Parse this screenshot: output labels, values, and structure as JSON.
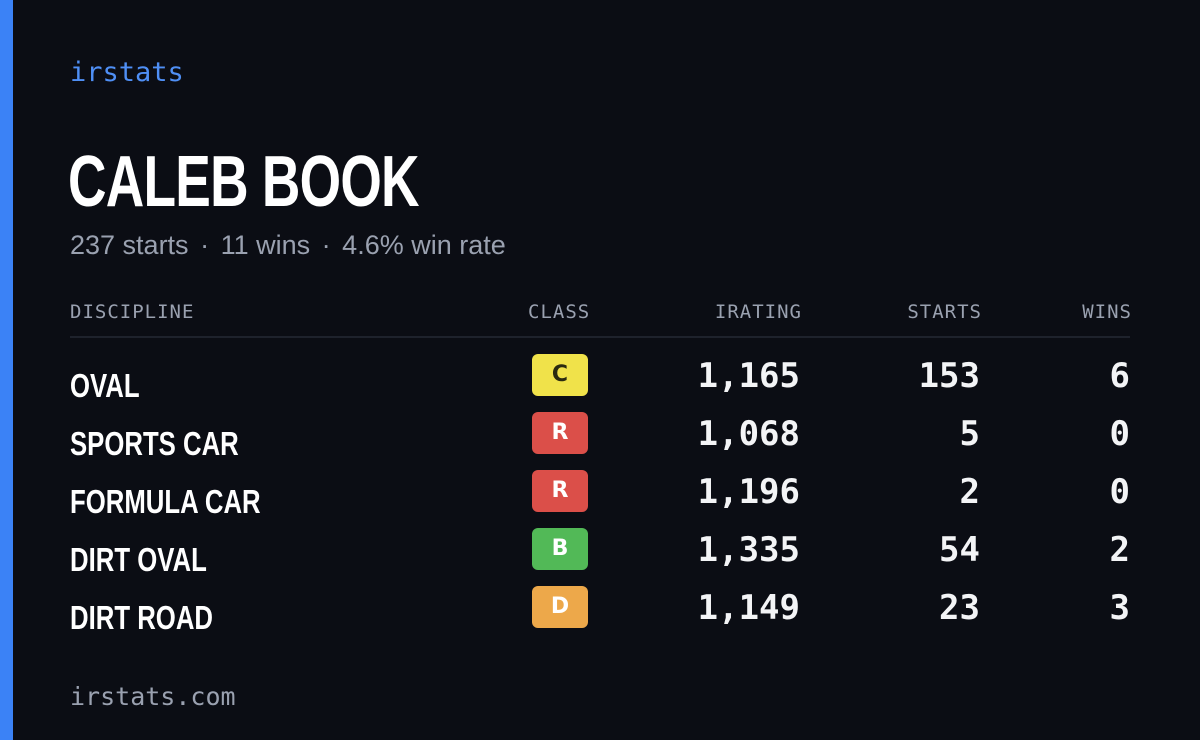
{
  "brand": "irstats",
  "player": {
    "name": "CALEB BOOK",
    "summary": {
      "starts": "237 starts",
      "wins": "11 wins",
      "win_rate": "4.6% win rate",
      "separator": "·"
    }
  },
  "table": {
    "headers": {
      "discipline": "DISCIPLINE",
      "class": "CLASS",
      "irating": "IRATING",
      "starts": "STARTS",
      "wins": "WINS"
    },
    "rows": [
      {
        "discipline": "OVAL",
        "class": "C",
        "class_color": "#f0e24a",
        "class_text_color": "#2a2a10",
        "irating": "1,165",
        "starts": "153",
        "wins": "6"
      },
      {
        "discipline": "SPORTS CAR",
        "class": "R",
        "class_color": "#db4f49",
        "class_text_color": "#ffffff",
        "irating": "1,068",
        "starts": "5",
        "wins": "0"
      },
      {
        "discipline": "FORMULA CAR",
        "class": "R",
        "class_color": "#db4f49",
        "class_text_color": "#ffffff",
        "irating": "1,196",
        "starts": "2",
        "wins": "0"
      },
      {
        "discipline": "DIRT OVAL",
        "class": "B",
        "class_color": "#52b957",
        "class_text_color": "#ffffff",
        "irating": "1,335",
        "starts": "54",
        "wins": "2"
      },
      {
        "discipline": "DIRT ROAD",
        "class": "D",
        "class_color": "#eda84a",
        "class_text_color": "#ffffff",
        "irating": "1,149",
        "starts": "23",
        "wins": "3"
      }
    ]
  },
  "footer": {
    "url": "irstats.com"
  },
  "colors": {
    "background": "#0b0d14",
    "accent": "#3b82f6",
    "brand": "#4f8ff5",
    "muted": "#9aa1b0"
  }
}
